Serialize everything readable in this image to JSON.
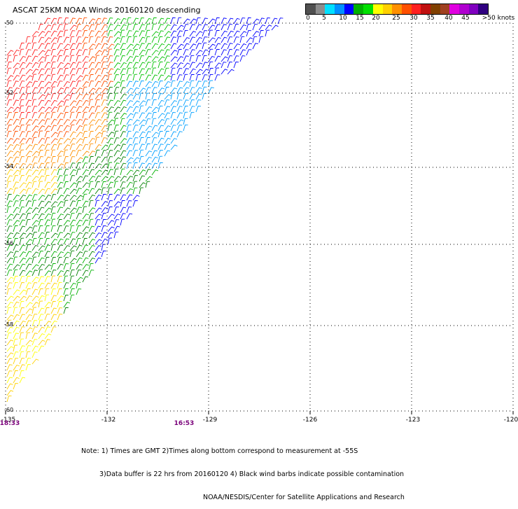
{
  "title": "ASCAT 25KM NOAA Winds 20160120 descending",
  "colorbar": {
    "colors": [
      "#505050",
      "#8c8c8c",
      "#00e0ff",
      "#0090ff",
      "#0000ff",
      "#00b000",
      "#00e000",
      "#ffff00",
      "#ffd000",
      "#ff9000",
      "#ff5000",
      "#ff2020",
      "#c01010",
      "#804000",
      "#a04020",
      "#e000e0",
      "#b000d0",
      "#8000c0",
      "#300080"
    ],
    "labels": [
      "0",
      "5",
      "10",
      "15",
      "20",
      "25",
      "30",
      "35",
      "40",
      "45",
      ">50 knots"
    ]
  },
  "map": {
    "lat_labels": [
      "-50",
      "-52",
      "-54",
      "-56",
      "-58",
      "-60"
    ],
    "lon_labels": [
      "-135",
      "-132",
      "-129",
      "-126",
      "-123",
      "-120"
    ],
    "lat_range": [
      -60,
      -50
    ],
    "lon_range": [
      -135,
      -120
    ],
    "times": [
      "18:33",
      "16:53"
    ]
  },
  "notes": [
    "Note: 1) Times are GMT 2)Times along bottom correspond to measurement at -55S",
    "3)Data buffer is 22 hrs from 20160120 4) Black wind barbs indicate possible contamination",
    "NOAA/NESDIS/Center for Satellite Applications and Research"
  ]
}
